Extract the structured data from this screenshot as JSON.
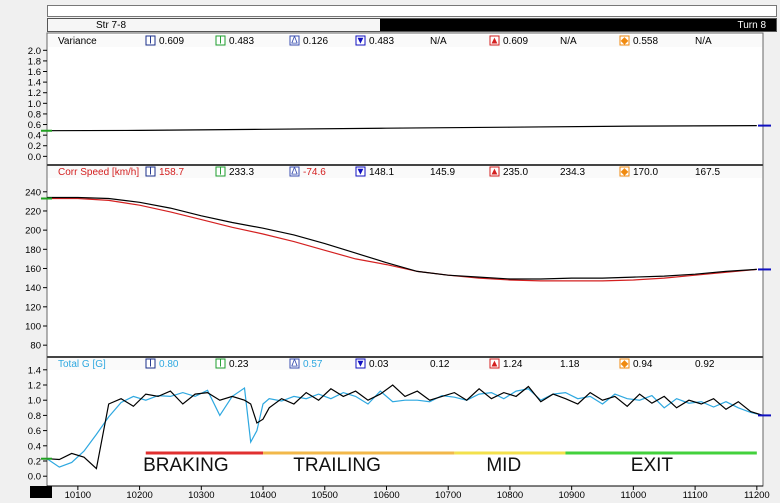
{
  "header": {
    "segment_left": "Str 7-8",
    "segment_right": "Turn 8",
    "unit": "foot"
  },
  "colors": {
    "braking": "#e03030",
    "trailing": "#f2b84a",
    "mid": "#f3e14c",
    "exit": "#43d13c",
    "series_black": "#000000",
    "series_red": "#d42020",
    "series_cyan": "#2ea8e0",
    "cursor_green": "#20a020",
    "cursor_blue": "#1010c0"
  },
  "phases": [
    "BRAKING",
    "TRAILING",
    "MID",
    "EXIT"
  ],
  "chart_data": [
    {
      "type": "line",
      "name": "Variance",
      "stats": [
        {
          "icon": "min-icon",
          "value": "0.609"
        },
        {
          "icon": "avg-icon",
          "value": "0.483"
        },
        {
          "icon": "delta-icon",
          "value": "0.126"
        },
        {
          "icon": "down-icon",
          "value": "0.483"
        },
        {
          "icon": "",
          "value": "N/A"
        },
        {
          "icon": "up-icon",
          "value": "0.609"
        },
        {
          "icon": "",
          "value": "N/A"
        },
        {
          "icon": "range-icon",
          "value": "0.558"
        },
        {
          "icon": "",
          "value": "N/A"
        }
      ],
      "ylim": [
        -0.05,
        2.1
      ],
      "yticks": [
        "2.0",
        "1.8",
        "1.6",
        "1.4",
        "1.2",
        "1.0",
        "0.8",
        "0.6",
        "0.4",
        "0.2",
        "0.0"
      ],
      "series": [
        {
          "x": [
            10050,
            10200,
            10400,
            10600,
            10800,
            11000,
            11200
          ],
          "values": [
            0.483,
            0.49,
            0.51,
            0.53,
            0.55,
            0.57,
            0.58
          ]
        }
      ]
    },
    {
      "type": "line",
      "name": "Corr Speed [km/h]",
      "stats": [
        {
          "icon": "min-icon",
          "value": "158.7"
        },
        {
          "icon": "avg-icon",
          "value": "233.3"
        },
        {
          "icon": "delta-icon",
          "value": "-74.6"
        },
        {
          "icon": "down-icon",
          "value": "148.1"
        },
        {
          "icon": "",
          "value": "145.9"
        },
        {
          "icon": "up-icon",
          "value": "235.0"
        },
        {
          "icon": "",
          "value": "234.3"
        },
        {
          "icon": "range-icon",
          "value": "170.0"
        },
        {
          "icon": "",
          "value": "167.5"
        }
      ],
      "ylim": [
        76,
        245
      ],
      "yticks": [
        "240",
        "220",
        "200",
        "180",
        "160",
        "140",
        "120",
        "100",
        "80"
      ],
      "series": [
        {
          "x": [
            10050,
            10100,
            10150,
            10200,
            10250,
            10300,
            10350,
            10400,
            10450,
            10500,
            10550,
            10600,
            10650,
            10700,
            10750,
            10800,
            10850,
            10900,
            10950,
            11000,
            11050,
            11100,
            11150,
            11200
          ],
          "values": [
            233,
            233,
            231,
            226,
            219,
            211,
            203,
            196,
            188,
            179,
            170,
            164,
            157,
            153,
            150,
            148,
            147,
            147,
            147,
            148,
            150,
            153,
            156,
            159
          ]
        },
        {
          "x": [
            10050,
            10100,
            10150,
            10200,
            10250,
            10300,
            10350,
            10400,
            10450,
            10500,
            10550,
            10600,
            10650,
            10700,
            10750,
            10800,
            10850,
            10900,
            10950,
            11000,
            11050,
            11100,
            11150,
            11200
          ],
          "values": [
            234,
            234,
            233,
            229,
            223,
            215,
            208,
            202,
            195,
            186,
            176,
            166,
            157,
            153,
            151,
            149,
            149,
            150,
            150,
            151,
            152,
            154,
            157,
            159
          ]
        }
      ]
    },
    {
      "type": "line",
      "name": "Total G [G]",
      "stats": [
        {
          "icon": "min-icon",
          "value": "0.80"
        },
        {
          "icon": "avg-icon",
          "value": "0.23"
        },
        {
          "icon": "delta-icon",
          "value": "0.57"
        },
        {
          "icon": "down-icon",
          "value": "0.03"
        },
        {
          "icon": "",
          "value": "0.12"
        },
        {
          "icon": "up-icon",
          "value": "1.24"
        },
        {
          "icon": "",
          "value": "1.18"
        },
        {
          "icon": "range-icon",
          "value": "0.94"
        },
        {
          "icon": "",
          "value": "0.92"
        }
      ],
      "ylim": [
        -0.05,
        1.45
      ],
      "yticks": [
        "1.4",
        "1.2",
        "1.0",
        "0.8",
        "0.6",
        "0.4",
        "0.2",
        "0.0"
      ],
      "series": [
        {
          "x": [
            10050,
            10070,
            10090,
            10110,
            10130,
            10150,
            10170,
            10190,
            10210,
            10230,
            10250,
            10270,
            10290,
            10310,
            10330,
            10350,
            10370,
            10380,
            10390,
            10400,
            10410,
            10430,
            10450,
            10470,
            10490,
            10510,
            10530,
            10550,
            10570,
            10590,
            10610,
            10630,
            10650,
            10670,
            10690,
            10710,
            10730,
            10750,
            10770,
            10790,
            10810,
            10830,
            10850,
            10870,
            10890,
            10910,
            10930,
            10950,
            10970,
            10990,
            11010,
            11030,
            11050,
            11070,
            11090,
            11110,
            11130,
            11150,
            11170,
            11190,
            11210
          ],
          "values": [
            0.23,
            0.12,
            0.18,
            0.33,
            0.55,
            0.78,
            0.97,
            1.05,
            1.0,
            1.06,
            1.05,
            1.1,
            1.05,
            1.13,
            0.8,
            1.05,
            1.16,
            0.45,
            0.6,
            0.95,
            1.02,
            0.99,
            1.05,
            1.02,
            1.08,
            1.02,
            1.1,
            1.05,
            0.95,
            1.12,
            0.98,
            1.0,
            1.0,
            0.98,
            1.06,
            1.04,
            1.0,
            1.08,
            1.1,
            1.02,
            1.12,
            1.15,
            1.0,
            1.08,
            1.1,
            1.02,
            1.05,
            0.95,
            1.08,
            1.02,
            1.0,
            1.06,
            0.9,
            1.02,
            0.96,
            0.98,
            0.91,
            0.98,
            0.9,
            0.84,
            0.8
          ]
        },
        {
          "x": [
            10050,
            10070,
            10090,
            10110,
            10130,
            10150,
            10170,
            10190,
            10210,
            10230,
            10250,
            10270,
            10290,
            10310,
            10330,
            10350,
            10370,
            10380,
            10390,
            10400,
            10410,
            10430,
            10450,
            10470,
            10490,
            10510,
            10530,
            10550,
            10570,
            10590,
            10610,
            10630,
            10650,
            10670,
            10690,
            10710,
            10730,
            10750,
            10770,
            10790,
            10810,
            10830,
            10850,
            10870,
            10890,
            10910,
            10930,
            10950,
            10970,
            10990,
            11010,
            11030,
            11050,
            11070,
            11090,
            11110,
            11130,
            11150,
            11170,
            11190,
            11210
          ],
          "values": [
            0.23,
            0.22,
            0.3,
            0.25,
            0.1,
            0.95,
            1.02,
            0.92,
            1.08,
            1.05,
            1.12,
            0.95,
            1.08,
            1.1,
            1.0,
            1.05,
            1.0,
            0.95,
            0.7,
            0.75,
            0.9,
            1.02,
            0.95,
            1.1,
            1.0,
            1.15,
            1.05,
            1.12,
            1.0,
            1.08,
            1.2,
            1.05,
            1.12,
            1.0,
            1.05,
            1.1,
            1.0,
            1.15,
            1.02,
            1.1,
            1.05,
            1.18,
            0.98,
            1.08,
            1.02,
            0.95,
            1.1,
            1.0,
            1.05,
            0.92,
            1.08,
            0.96,
            1.05,
            0.9,
            1.0,
            0.95,
            1.02,
            0.88,
            0.98,
            0.85,
            0.8
          ]
        }
      ]
    }
  ],
  "x_axis": {
    "xlim": [
      10050,
      11210
    ],
    "ticks": [
      10100,
      10200,
      10300,
      10400,
      10500,
      10600,
      10700,
      10800,
      10900,
      11000,
      11100,
      11200
    ]
  }
}
